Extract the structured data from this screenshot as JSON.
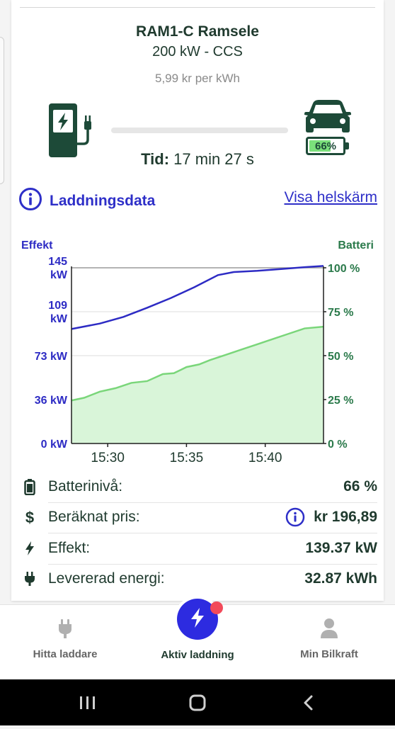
{
  "station": {
    "name": "RAM1-C Ramsele",
    "power": "200 kW - CCS",
    "price": "5,99 kr per kWh"
  },
  "session": {
    "time_label": "Tid:",
    "time_value": "17 min 27 s",
    "battery_percent_text": "66%",
    "battery_level": 0.66,
    "progress": 0
  },
  "section": {
    "title": "Laddningsdata",
    "fullscreen_link": "Visa helskärm"
  },
  "chart_data": {
    "type": "line",
    "left_axis_label": "Effekt",
    "right_axis_label": "Batteri",
    "left_ticks": [
      "0 kW",
      "36 kW",
      "73 kW",
      "109 kW",
      "145 kW"
    ],
    "right_ticks": [
      "0 %",
      "25 %",
      "50 %",
      "75 %",
      "100 %"
    ],
    "x_ticks": [
      "15:30",
      "15:35",
      "15:40"
    ],
    "x_tick_minutes": [
      30,
      35,
      40
    ],
    "x_range_minutes": [
      27.7,
      43.7
    ],
    "left_ylim": [
      0,
      145
    ],
    "right_ylim": [
      0,
      100
    ],
    "grid": true,
    "colors": {
      "power": "#2d2bc4",
      "battery": "#7ad67a",
      "battery_fill": "#d9f5d9",
      "axis_left": "#2d2bc4",
      "axis_right": "#2b7a4b"
    },
    "series": [
      {
        "axis": "left",
        "x": [
          27.7,
          29.5,
          31.0,
          32.5,
          34.0,
          35.5,
          37.0,
          38.0,
          39.5,
          41.0,
          42.5,
          43.7
        ],
        "values": [
          94.5,
          99.0,
          104.5,
          112.0,
          120.0,
          129.0,
          139.0,
          141.5,
          142.5,
          144.0,
          145.5,
          146.5
        ]
      },
      {
        "axis": "right",
        "x": [
          27.7,
          28.5,
          29.5,
          30.5,
          31.5,
          32.5,
          33.5,
          34.2,
          35.0,
          35.8,
          36.5,
          37.5,
          38.5,
          39.5,
          40.5,
          41.5,
          42.5,
          43.7
        ],
        "values": [
          24.5,
          26.0,
          29.5,
          31.5,
          34.5,
          35.5,
          39.5,
          40.0,
          43.5,
          45.0,
          47.5,
          50.5,
          53.5,
          56.5,
          59.5,
          62.5,
          65.5,
          66.5
        ]
      }
    ]
  },
  "details": [
    {
      "icon": "battery-icon",
      "label": "Batterinivå:",
      "value": "66 %",
      "info": false
    },
    {
      "icon": "dollar-icon",
      "label": "Beräknat pris:",
      "value": "kr 196,89",
      "info": true
    },
    {
      "icon": "bolt-icon",
      "label": "Effekt:",
      "value": "139.37 kW",
      "info": false
    },
    {
      "icon": "plug-icon",
      "label": "Levererad energi:",
      "value": "32.87 kWh",
      "info": false
    }
  ],
  "nav": {
    "items": [
      {
        "label": "Hitta laddare",
        "icon": "plug-icon",
        "active": false
      },
      {
        "label": "Aktiv laddning",
        "icon": "bolt-icon",
        "active": true
      },
      {
        "label": "Min Bilkraft",
        "icon": "person-icon",
        "active": false
      }
    ],
    "active_color": "#2d2be0",
    "notification_color": "#f24a5a"
  }
}
